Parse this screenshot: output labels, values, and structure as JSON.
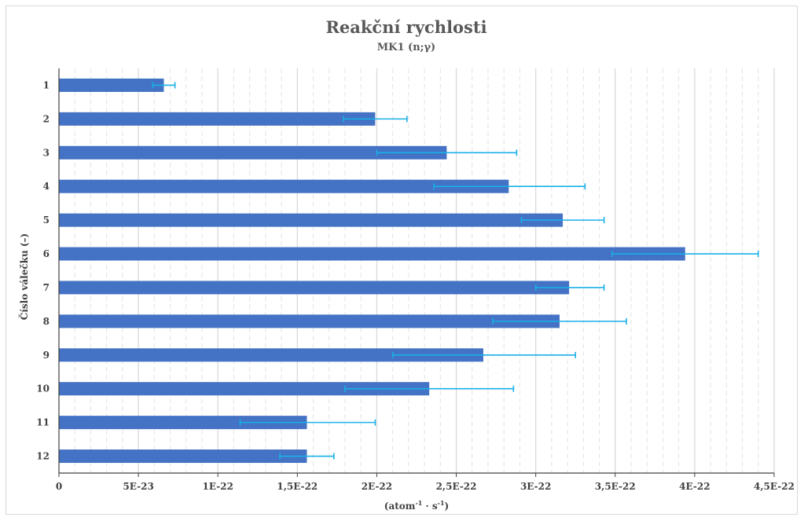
{
  "chart_data": {
    "type": "bar",
    "orientation": "horizontal",
    "title": "Reakční rychlosti",
    "subtitle": "MK1 (n;γ)",
    "xlabel_base": "(atom",
    "xlabel_sup1": "-1",
    "xlabel_mid": " · s",
    "xlabel_sup2": "-1",
    "xlabel_end": ")",
    "ylabel": "Číslo válečku (–)",
    "xlim": [
      0,
      4.5e-22
    ],
    "x_tick_values": [
      0,
      5e-23,
      1e-22,
      1.5e-22,
      2e-22,
      2.5e-22,
      3e-22,
      3.5e-22,
      4e-22,
      4.5e-22
    ],
    "x_tick_labels": [
      "0",
      "5E-23",
      "1E-22",
      "1,5E-22",
      "2E-22",
      "2,5E-22",
      "3E-22",
      "3,5E-22",
      "4E-22",
      "4,5E-22"
    ],
    "categories": [
      "1",
      "2",
      "3",
      "4",
      "5",
      "6",
      "7",
      "8",
      "9",
      "10",
      "11",
      "12"
    ],
    "values": [
      6.6e-23,
      1.99e-22,
      2.44e-22,
      2.83e-22,
      3.17e-22,
      3.94e-22,
      3.21e-22,
      3.15e-22,
      2.67e-22,
      2.33e-22,
      1.56e-22,
      1.56e-22
    ],
    "error_low": [
      5.9e-23,
      1.79e-22,
      2e-22,
      2.36e-22,
      2.91e-22,
      3.48e-22,
      3e-22,
      2.73e-22,
      2.1e-22,
      1.8e-22,
      1.14e-22,
      1.39e-22
    ],
    "error_high": [
      7.3e-23,
      2.19e-22,
      2.88e-22,
      3.31e-22,
      3.43e-22,
      4.4e-22,
      3.43e-22,
      3.57e-22,
      3.25e-22,
      2.86e-22,
      1.99e-22,
      1.73e-22
    ],
    "grid": true,
    "bar_color": "#4472c4",
    "error_color": "#19b0e8",
    "major_grid_color": "#d9d9d9",
    "minor_grid_color": "#e3e3e3"
  }
}
